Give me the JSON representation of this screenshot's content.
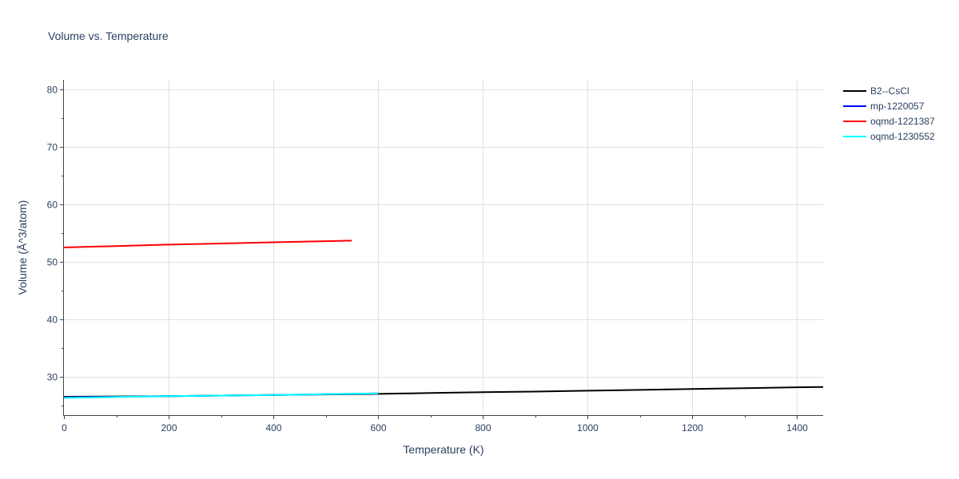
{
  "chart_data": {
    "type": "line",
    "title": "Volume vs. Temperature",
    "xlabel": "Temperature (K)",
    "ylabel": "Volume (Å^3/atom)",
    "xlim": [
      0,
      1450
    ],
    "ylim": [
      23.3,
      81.7
    ],
    "xticks": [
      0,
      200,
      400,
      600,
      800,
      1000,
      1200,
      1400
    ],
    "yticks": [
      30,
      40,
      50,
      60,
      70,
      80
    ],
    "xtick_labels": [
      "0",
      "200",
      "400",
      "600",
      "800",
      "1000",
      "1200",
      "1400"
    ],
    "ytick_labels": [
      "30",
      "40",
      "50",
      "60",
      "70",
      "80"
    ],
    "grid": true,
    "legend_position": "right",
    "series": [
      {
        "name": "B2--CsCl",
        "color": "#000000",
        "x": [
          0,
          100,
          200,
          300,
          400,
          500,
          600,
          700,
          800,
          900,
          1000,
          1100,
          1200,
          1300,
          1400,
          1450
        ],
        "y": [
          26.5,
          26.55,
          26.6,
          26.7,
          26.8,
          26.9,
          27.0,
          27.15,
          27.3,
          27.4,
          27.55,
          27.7,
          27.85,
          28.0,
          28.15,
          28.2
        ]
      },
      {
        "name": "mp-1220057",
        "color": "#0000ff",
        "x": [
          0,
          100,
          200,
          300,
          400,
          500,
          600
        ],
        "y": [
          26.4,
          26.5,
          26.6,
          26.7,
          26.8,
          26.95,
          27.1
        ]
      },
      {
        "name": "oqmd-1221387",
        "color": "#ff0000",
        "x": [
          0,
          100,
          200,
          300,
          400,
          500,
          550
        ],
        "y": [
          52.5,
          52.75,
          53.0,
          53.2,
          53.4,
          53.6,
          53.7
        ]
      },
      {
        "name": "oqmd-1230552",
        "color": "#00ffff",
        "x": [
          0,
          100,
          200,
          300,
          400,
          500,
          600
        ],
        "y": [
          26.3,
          26.45,
          26.6,
          26.7,
          26.8,
          26.95,
          27.1
        ]
      }
    ]
  }
}
